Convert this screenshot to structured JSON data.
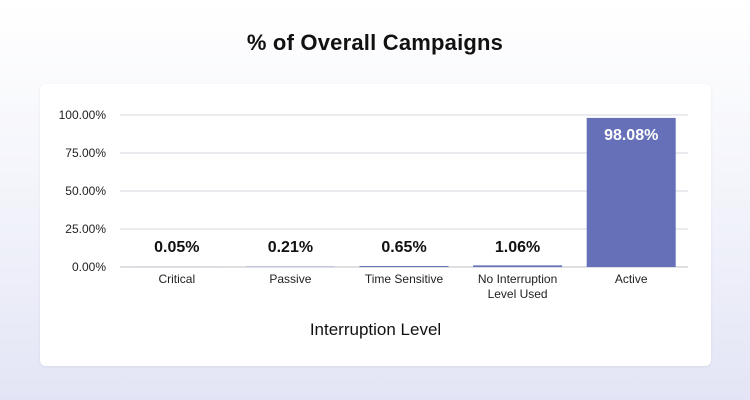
{
  "chart_data": {
    "type": "bar",
    "title": "% of Overall Campaigns",
    "xlabel": "Interruption Level",
    "ylabel": "",
    "ylim": [
      0,
      100
    ],
    "yticks": [
      "100.00%",
      "75.00%",
      "50.00%",
      "25.00%",
      "0.00%"
    ],
    "ytick_values": [
      100,
      75,
      50,
      25,
      0
    ],
    "categories": [
      [
        "Critical"
      ],
      [
        "Passive"
      ],
      [
        "Time Sensitive"
      ],
      [
        "No Interruption",
        "Level Used"
      ],
      [
        "Active"
      ]
    ],
    "values": [
      0.05,
      0.21,
      0.65,
      1.06,
      98.08
    ],
    "value_labels": [
      "0.05%",
      "0.21%",
      "0.65%",
      "1.06%",
      "98.08%"
    ],
    "grid": true,
    "bar_color": "#6570b8",
    "label_color_outside": "#111111",
    "label_color_inside": "#ffffff"
  }
}
